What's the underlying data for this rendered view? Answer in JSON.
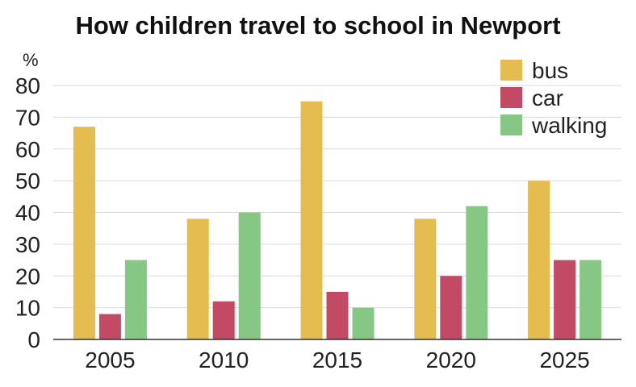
{
  "chart_data": {
    "type": "bar",
    "title": "How children travel to school in Newport",
    "unit_label": "%",
    "xlabel": "",
    "ylabel": "",
    "categories": [
      "2005",
      "2010",
      "2015",
      "2020",
      "2025"
    ],
    "series": [
      {
        "name": "bus",
        "color": "#E5BC4F",
        "values": [
          67,
          38,
          75,
          38,
          50
        ]
      },
      {
        "name": "car",
        "color": "#C24A64",
        "values": [
          8,
          12,
          15,
          20,
          25
        ]
      },
      {
        "name": "walking",
        "color": "#85C783",
        "values": [
          25,
          40,
          10,
          42,
          25
        ]
      }
    ],
    "ylim": [
      0,
      80
    ],
    "yticks": [
      0,
      10,
      20,
      30,
      40,
      50,
      60,
      70,
      80
    ],
    "grid": true,
    "legend_position": "top-right"
  }
}
